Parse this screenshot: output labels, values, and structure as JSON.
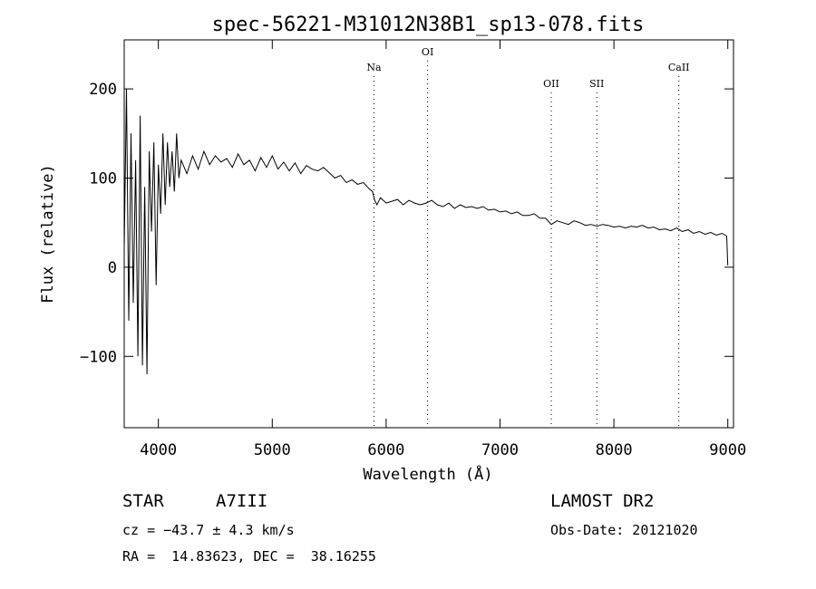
{
  "chart_data": {
    "type": "line",
    "title": "spec-56221-M31012N38B1_sp13-078.fits",
    "xlabel": "Wavelength (Å)",
    "ylabel": "Flux (relative)",
    "xlim": [
      3700,
      9050
    ],
    "ylim": [
      -180,
      255
    ],
    "xticks": [
      4000,
      5000,
      6000,
      7000,
      8000,
      9000
    ],
    "yticks": [
      -100,
      0,
      100,
      200
    ],
    "xtick_labels": [
      "4000",
      "5000",
      "6000",
      "7000",
      "8000",
      "9000"
    ],
    "ytick_labels": [
      "−100",
      "0",
      "100",
      "200"
    ],
    "grid": false,
    "lines": [
      {
        "label": "Na",
        "wavelength": 5893
      },
      {
        "label": "OI",
        "wavelength": 6364
      },
      {
        "label": "OII",
        "wavelength": 7450
      },
      {
        "label": "SII",
        "wavelength": 7850
      },
      {
        "label": "CaII",
        "wavelength": 8570
      }
    ],
    "series": [
      {
        "x": [
          3700,
          3720,
          3740,
          3760,
          3780,
          3800,
          3820,
          3840,
          3860,
          3880,
          3900,
          3920,
          3940,
          3960,
          3980,
          4000,
          4020,
          4040,
          4060,
          4080,
          4100,
          4120,
          4140,
          4160,
          4180,
          4200,
          4250,
          4300,
          4350,
          4400,
          4450,
          4500,
          4550,
          4600,
          4650,
          4700,
          4750,
          4800,
          4850,
          4900,
          4950,
          5000,
          5050,
          5100,
          5150,
          5200,
          5250,
          5300,
          5350,
          5400,
          5450,
          5500,
          5550,
          5600,
          5650,
          5700,
          5750,
          5800,
          5850,
          5880,
          5900,
          5920,
          5950,
          6000,
          6050,
          6100,
          6150,
          6200,
          6250,
          6300,
          6350,
          6400,
          6450,
          6500,
          6550,
          6600,
          6650,
          6700,
          6750,
          6800,
          6850,
          6900,
          6950,
          7000,
          7050,
          7100,
          7150,
          7200,
          7250,
          7300,
          7350,
          7400,
          7450,
          7500,
          7550,
          7600,
          7650,
          7700,
          7750,
          7800,
          7850,
          7900,
          7950,
          8000,
          8050,
          8100,
          8150,
          8200,
          8250,
          8300,
          8350,
          8400,
          8450,
          8500,
          8550,
          8600,
          8650,
          8700,
          8750,
          8800,
          8850,
          8900,
          8950,
          8990,
          9000
        ],
        "y": [
          20,
          200,
          -60,
          150,
          -40,
          120,
          -100,
          170,
          -110,
          90,
          -120,
          130,
          40,
          140,
          -20,
          115,
          60,
          150,
          70,
          140,
          90,
          130,
          85,
          150,
          100,
          120,
          105,
          125,
          110,
          130,
          115,
          125,
          118,
          122,
          112,
          127,
          115,
          120,
          108,
          123,
          112,
          125,
          110,
          118,
          108,
          117,
          105,
          114,
          110,
          108,
          112,
          106,
          100,
          103,
          95,
          98,
          93,
          95,
          88,
          85,
          75,
          70,
          78,
          72,
          74,
          76,
          70,
          75,
          72,
          70,
          72,
          75,
          70,
          68,
          72,
          66,
          70,
          67,
          68,
          66,
          68,
          64,
          65,
          62,
          63,
          60,
          62,
          58,
          58,
          60,
          55,
          55,
          48,
          52,
          50,
          48,
          52,
          50,
          47,
          48,
          46,
          48,
          47,
          45,
          46,
          44,
          46,
          45,
          47,
          44,
          45,
          42,
          43,
          41,
          44,
          40,
          42,
          38,
          40,
          37,
          39,
          36,
          38,
          35,
          2
        ]
      }
    ]
  },
  "info": {
    "object_type": "STAR",
    "subclass": "A7III",
    "survey": "LAMOST DR2",
    "redshift": "cz = −43.7 ± 4.3 km/s",
    "obs_date": "Obs-Date: 20121020",
    "coords": "RA =  14.83623, DEC =  38.16255"
  }
}
